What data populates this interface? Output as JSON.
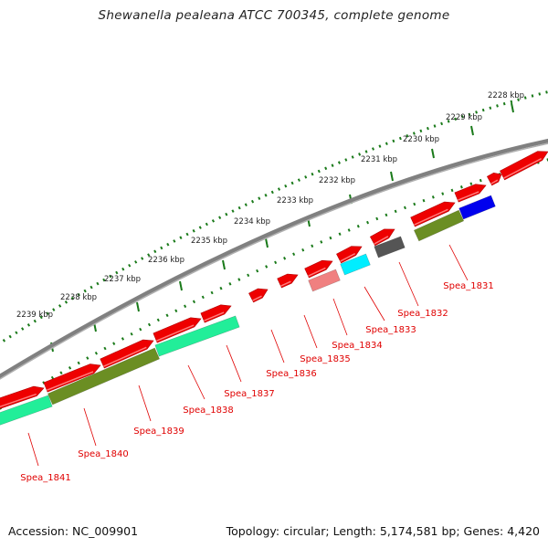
{
  "title": "Shewanella pealeana ATCC 700345, complete genome",
  "accession_text": "Accession: NC_009901",
  "summary_text": "Topology: circular; Length: 5,174,581 bp; Genes: 4,420",
  "colors": {
    "backbone": "#808080",
    "ruler": "#1a7a1a",
    "gene_forward": "#ee0000",
    "gene_label": "#e00000",
    "cog_olive": "#6b8e23",
    "cog_aqua": "#22ee99",
    "cog_blue": "#0000ee",
    "cog_gray": "#555555",
    "cog_cyan": "#00eeff",
    "cog_pink": "#f08080"
  },
  "ruler_labels": [
    "2228 kbp",
    "2229 kbp",
    "2230 kbp",
    "2231 kbp",
    "2232 kbp",
    "2233 kbp",
    "2234 kbp",
    "2235 kbp",
    "2236 kbp",
    "2237 kbp",
    "2238 kbp",
    "2239 kbp"
  ],
  "gene_labels": [
    "Spea_1831",
    "Spea_1832",
    "Spea_1833",
    "Spea_1834",
    "Spea_1835",
    "Spea_1836",
    "Spea_1837",
    "Spea_1838",
    "Spea_1839",
    "Spea_1840",
    "Spea_1841"
  ]
}
